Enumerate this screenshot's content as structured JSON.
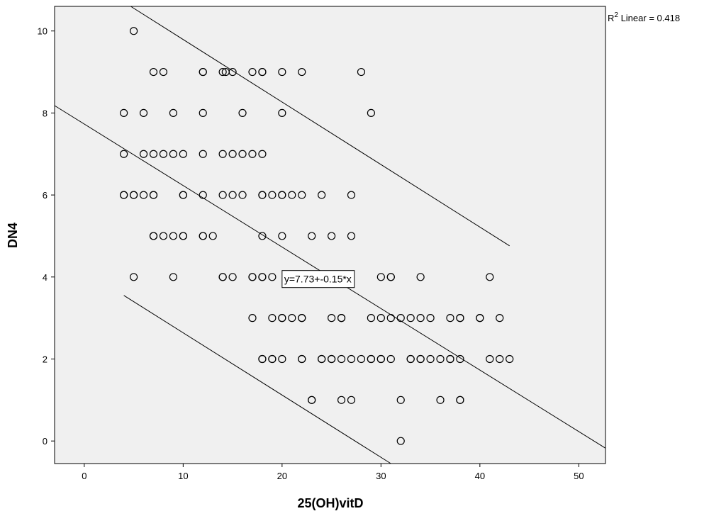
{
  "chart_data": {
    "type": "scatter",
    "xlabel": "25(OH)vitD",
    "ylabel": "DN4",
    "xlim": [
      -3,
      52.7
    ],
    "ylim": [
      -0.55,
      10.6
    ],
    "x_ticks": [
      0,
      10,
      20,
      30,
      40,
      50
    ],
    "y_ticks": [
      0,
      2,
      4,
      6,
      8,
      10
    ],
    "grid": false,
    "background": "#f0f0f0",
    "r2_label": {
      "prefix": "R",
      "superscript": "2",
      "suffix": " Linear = 0.418"
    },
    "fit_label": "y=7.73+-0.15*x",
    "fit_label_anchor": [
      20,
      3.95
    ],
    "fit_line": {
      "intercept": 7.73,
      "slope": -0.15,
      "x_range": [
        -3,
        52.7
      ]
    },
    "upper_bound": {
      "from": [
        4.7,
        10.6
      ],
      "to": [
        43,
        4.76
      ]
    },
    "lower_bound": {
      "from": [
        4,
        3.55
      ],
      "to": [
        31,
        -0.55
      ]
    },
    "points": [
      [
        5,
        10
      ],
      [
        7,
        9
      ],
      [
        8,
        9
      ],
      [
        12,
        9
      ],
      [
        12,
        9
      ],
      [
        14,
        9
      ],
      [
        14.3,
        9
      ],
      [
        15,
        9
      ],
      [
        17,
        9
      ],
      [
        18,
        9
      ],
      [
        18,
        9
      ],
      [
        20,
        9
      ],
      [
        22,
        9
      ],
      [
        28,
        9
      ],
      [
        4,
        8
      ],
      [
        6,
        8
      ],
      [
        9,
        8
      ],
      [
        12,
        8
      ],
      [
        16,
        8
      ],
      [
        20,
        8
      ],
      [
        29,
        8
      ],
      [
        4,
        7
      ],
      [
        6,
        7
      ],
      [
        7,
        7
      ],
      [
        8,
        7
      ],
      [
        9,
        7
      ],
      [
        10,
        7
      ],
      [
        12,
        7
      ],
      [
        14,
        7
      ],
      [
        15,
        7
      ],
      [
        16,
        7
      ],
      [
        17,
        7
      ],
      [
        18,
        7
      ],
      [
        4,
        6
      ],
      [
        4,
        6
      ],
      [
        5,
        6
      ],
      [
        5,
        6
      ],
      [
        6,
        6
      ],
      [
        7,
        6
      ],
      [
        7,
        6
      ],
      [
        10,
        6
      ],
      [
        10,
        6
      ],
      [
        12,
        6
      ],
      [
        14,
        6
      ],
      [
        15,
        6
      ],
      [
        16,
        6
      ],
      [
        18,
        6
      ],
      [
        18,
        6
      ],
      [
        19,
        6
      ],
      [
        20,
        6
      ],
      [
        20,
        6
      ],
      [
        21,
        6
      ],
      [
        22,
        6
      ],
      [
        24,
        6
      ],
      [
        27,
        6
      ],
      [
        7,
        5
      ],
      [
        7,
        5
      ],
      [
        8,
        5
      ],
      [
        9,
        5
      ],
      [
        10,
        5
      ],
      [
        10,
        5
      ],
      [
        12,
        5
      ],
      [
        12,
        5
      ],
      [
        13,
        5
      ],
      [
        18,
        5
      ],
      [
        20,
        5
      ],
      [
        23,
        5
      ],
      [
        25,
        5
      ],
      [
        27,
        5
      ],
      [
        5,
        4
      ],
      [
        9,
        4
      ],
      [
        14,
        4
      ],
      [
        14,
        4
      ],
      [
        15,
        4
      ],
      [
        17,
        4
      ],
      [
        17,
        4
      ],
      [
        18,
        4
      ],
      [
        18,
        4
      ],
      [
        19,
        4
      ],
      [
        30,
        4
      ],
      [
        31,
        4
      ],
      [
        31,
        4
      ],
      [
        34,
        4
      ],
      [
        41,
        4
      ],
      [
        17,
        3
      ],
      [
        19,
        3
      ],
      [
        20,
        3
      ],
      [
        20,
        3
      ],
      [
        21,
        3
      ],
      [
        22,
        3
      ],
      [
        22,
        3
      ],
      [
        25,
        3
      ],
      [
        26,
        3
      ],
      [
        26,
        3
      ],
      [
        29,
        3
      ],
      [
        30,
        3
      ],
      [
        31,
        3
      ],
      [
        32,
        3
      ],
      [
        33,
        3
      ],
      [
        34,
        3
      ],
      [
        35,
        3
      ],
      [
        37,
        3
      ],
      [
        38,
        3
      ],
      [
        38,
        3
      ],
      [
        40,
        3
      ],
      [
        40,
        3
      ],
      [
        42,
        3
      ],
      [
        18,
        2
      ],
      [
        18,
        2
      ],
      [
        19,
        2
      ],
      [
        19,
        2
      ],
      [
        20,
        2
      ],
      [
        22,
        2
      ],
      [
        22,
        2
      ],
      [
        24,
        2
      ],
      [
        24,
        2
      ],
      [
        25,
        2
      ],
      [
        25,
        2
      ],
      [
        26,
        2
      ],
      [
        27,
        2
      ],
      [
        28,
        2
      ],
      [
        29,
        2
      ],
      [
        29,
        2
      ],
      [
        30,
        2
      ],
      [
        30,
        2
      ],
      [
        31,
        2
      ],
      [
        33,
        2
      ],
      [
        33,
        2
      ],
      [
        34,
        2
      ],
      [
        34,
        2
      ],
      [
        35,
        2
      ],
      [
        36,
        2
      ],
      [
        37,
        2
      ],
      [
        37,
        2
      ],
      [
        38,
        2
      ],
      [
        41,
        2
      ],
      [
        42,
        2
      ],
      [
        43,
        2
      ],
      [
        23,
        1
      ],
      [
        23,
        1
      ],
      [
        26,
        1
      ],
      [
        27,
        1
      ],
      [
        32,
        1
      ],
      [
        36,
        1
      ],
      [
        38,
        1
      ],
      [
        38,
        1
      ],
      [
        32,
        0
      ]
    ]
  }
}
